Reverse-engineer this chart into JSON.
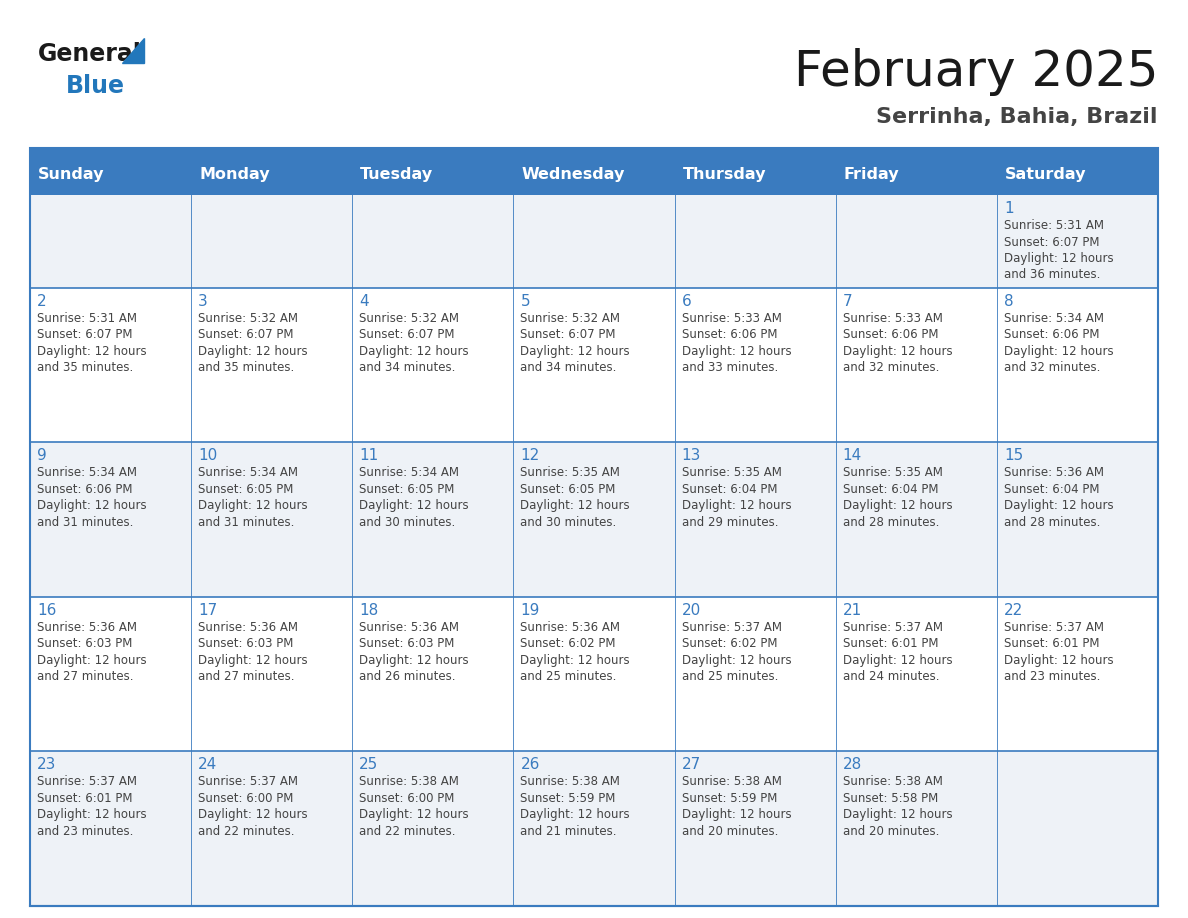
{
  "title": "February 2025",
  "subtitle": "Serrinha, Bahia, Brazil",
  "days_of_week": [
    "Sunday",
    "Monday",
    "Tuesday",
    "Wednesday",
    "Thursday",
    "Friday",
    "Saturday"
  ],
  "header_bg": "#3a7bbf",
  "header_text": "#ffffff",
  "cell_bg_light": "#eef2f7",
  "cell_bg_white": "#ffffff",
  "border_color": "#3a7bbf",
  "row_divider_color": "#3a7bbf",
  "title_color": "#1a1a1a",
  "subtitle_color": "#444444",
  "day_num_color": "#3a7bbf",
  "cell_text_color": "#444444",
  "logo_general_color": "#1a1a1a",
  "logo_blue_color": "#2277bb",
  "calendar_data": [
    [
      null,
      null,
      null,
      null,
      null,
      null,
      {
        "day": 1,
        "sunrise": "5:31 AM",
        "sunset": "6:07 PM",
        "daylight_hours": 12,
        "daylight_minutes": 36
      }
    ],
    [
      {
        "day": 2,
        "sunrise": "5:31 AM",
        "sunset": "6:07 PM",
        "daylight_hours": 12,
        "daylight_minutes": 35
      },
      {
        "day": 3,
        "sunrise": "5:32 AM",
        "sunset": "6:07 PM",
        "daylight_hours": 12,
        "daylight_minutes": 35
      },
      {
        "day": 4,
        "sunrise": "5:32 AM",
        "sunset": "6:07 PM",
        "daylight_hours": 12,
        "daylight_minutes": 34
      },
      {
        "day": 5,
        "sunrise": "5:32 AM",
        "sunset": "6:07 PM",
        "daylight_hours": 12,
        "daylight_minutes": 34
      },
      {
        "day": 6,
        "sunrise": "5:33 AM",
        "sunset": "6:06 PM",
        "daylight_hours": 12,
        "daylight_minutes": 33
      },
      {
        "day": 7,
        "sunrise": "5:33 AM",
        "sunset": "6:06 PM",
        "daylight_hours": 12,
        "daylight_minutes": 32
      },
      {
        "day": 8,
        "sunrise": "5:34 AM",
        "sunset": "6:06 PM",
        "daylight_hours": 12,
        "daylight_minutes": 32
      }
    ],
    [
      {
        "day": 9,
        "sunrise": "5:34 AM",
        "sunset": "6:06 PM",
        "daylight_hours": 12,
        "daylight_minutes": 31
      },
      {
        "day": 10,
        "sunrise": "5:34 AM",
        "sunset": "6:05 PM",
        "daylight_hours": 12,
        "daylight_minutes": 31
      },
      {
        "day": 11,
        "sunrise": "5:34 AM",
        "sunset": "6:05 PM",
        "daylight_hours": 12,
        "daylight_minutes": 30
      },
      {
        "day": 12,
        "sunrise": "5:35 AM",
        "sunset": "6:05 PM",
        "daylight_hours": 12,
        "daylight_minutes": 30
      },
      {
        "day": 13,
        "sunrise": "5:35 AM",
        "sunset": "6:04 PM",
        "daylight_hours": 12,
        "daylight_minutes": 29
      },
      {
        "day": 14,
        "sunrise": "5:35 AM",
        "sunset": "6:04 PM",
        "daylight_hours": 12,
        "daylight_minutes": 28
      },
      {
        "day": 15,
        "sunrise": "5:36 AM",
        "sunset": "6:04 PM",
        "daylight_hours": 12,
        "daylight_minutes": 28
      }
    ],
    [
      {
        "day": 16,
        "sunrise": "5:36 AM",
        "sunset": "6:03 PM",
        "daylight_hours": 12,
        "daylight_minutes": 27
      },
      {
        "day": 17,
        "sunrise": "5:36 AM",
        "sunset": "6:03 PM",
        "daylight_hours": 12,
        "daylight_minutes": 27
      },
      {
        "day": 18,
        "sunrise": "5:36 AM",
        "sunset": "6:03 PM",
        "daylight_hours": 12,
        "daylight_minutes": 26
      },
      {
        "day": 19,
        "sunrise": "5:36 AM",
        "sunset": "6:02 PM",
        "daylight_hours": 12,
        "daylight_minutes": 25
      },
      {
        "day": 20,
        "sunrise": "5:37 AM",
        "sunset": "6:02 PM",
        "daylight_hours": 12,
        "daylight_minutes": 25
      },
      {
        "day": 21,
        "sunrise": "5:37 AM",
        "sunset": "6:01 PM",
        "daylight_hours": 12,
        "daylight_minutes": 24
      },
      {
        "day": 22,
        "sunrise": "5:37 AM",
        "sunset": "6:01 PM",
        "daylight_hours": 12,
        "daylight_minutes": 23
      }
    ],
    [
      {
        "day": 23,
        "sunrise": "5:37 AM",
        "sunset": "6:01 PM",
        "daylight_hours": 12,
        "daylight_minutes": 23
      },
      {
        "day": 24,
        "sunrise": "5:37 AM",
        "sunset": "6:00 PM",
        "daylight_hours": 12,
        "daylight_minutes": 22
      },
      {
        "day": 25,
        "sunrise": "5:38 AM",
        "sunset": "6:00 PM",
        "daylight_hours": 12,
        "daylight_minutes": 22
      },
      {
        "day": 26,
        "sunrise": "5:38 AM",
        "sunset": "5:59 PM",
        "daylight_hours": 12,
        "daylight_minutes": 21
      },
      {
        "day": 27,
        "sunrise": "5:38 AM",
        "sunset": "5:59 PM",
        "daylight_hours": 12,
        "daylight_minutes": 20
      },
      {
        "day": 28,
        "sunrise": "5:38 AM",
        "sunset": "5:58 PM",
        "daylight_hours": 12,
        "daylight_minutes": 20
      },
      null
    ]
  ],
  "row_heights_ratio": [
    0.6,
    1.0,
    1.0,
    1.0,
    1.0
  ],
  "row_bg_colors": [
    "#eef2f7",
    "#ffffff",
    "#eef2f7",
    "#ffffff",
    "#eef2f7"
  ]
}
